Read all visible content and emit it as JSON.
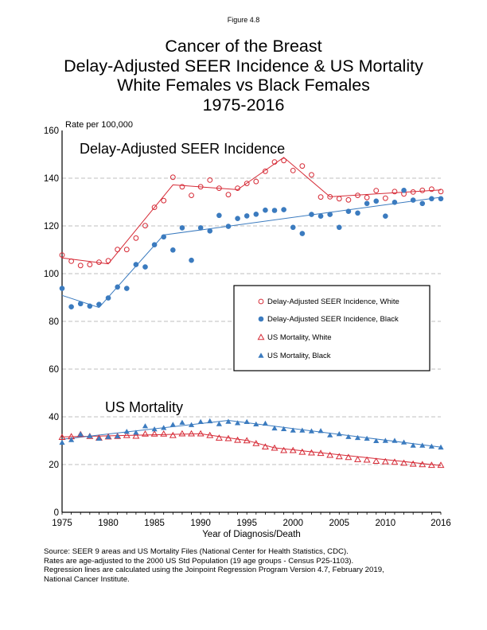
{
  "figure_label": "Figure 4.8",
  "title_lines": [
    "Cancer of the Breast",
    "Delay-Adjusted SEER Incidence & US Mortality",
    "White Females vs Black Females",
    "1975-2016"
  ],
  "footnote_lines": [
    "Source: SEER 9 areas and US Mortality Files (National Center for Health Statistics, CDC).",
    "Rates are age-adjusted to the 2000 US Std Population (19 age groups - Census P25-1103).",
    "Regression lines are calculated using the Joinpoint Regression Program Version 4.7, February 2019,",
    "National Cancer Institute."
  ],
  "colors": {
    "white": "#d62a36",
    "black": "#3b7bbf",
    "grid": "#aaaaaa"
  },
  "chart_data": {
    "type": "scatter",
    "title": "Cancer of the Breast - Delay-Adjusted SEER Incidence & US Mortality - White Females vs Black Females 1975-2016",
    "xlabel": "Year of Diagnosis/Death",
    "ylabel": "Rate per 100,000",
    "xlim": [
      1975,
      2016
    ],
    "ylim": [
      0,
      160
    ],
    "x_ticks": [
      1975,
      1980,
      1985,
      1990,
      1995,
      2000,
      2005,
      2010,
      2016
    ],
    "y_ticks": [
      0,
      20,
      40,
      60,
      80,
      100,
      120,
      140,
      160
    ],
    "grid": "horizontal dashed at 20, 40, 60, 80, 100, 120, 140",
    "legend_position": "center-right",
    "annotations": [
      "Delay-Adjusted SEER Incidence",
      "US Mortality"
    ],
    "years": [
      1975,
      1976,
      1977,
      1978,
      1979,
      1980,
      1981,
      1982,
      1983,
      1984,
      1985,
      1986,
      1987,
      1988,
      1989,
      1990,
      1991,
      1992,
      1993,
      1994,
      1995,
      1996,
      1997,
      1998,
      1999,
      2000,
      2001,
      2002,
      2003,
      2004,
      2005,
      2006,
      2007,
      2008,
      2009,
      2010,
      2011,
      2012,
      2013,
      2014,
      2015,
      2016
    ],
    "series": [
      {
        "name": "Delay-Adjusted SEER Incidence, White",
        "marker": "open-circle",
        "color": "#d62a36",
        "values": [
          107.8,
          105.2,
          103.4,
          103.8,
          104.8,
          105.4,
          110.1,
          110.1,
          114.9,
          120.1,
          127.8,
          130.6,
          140.4,
          136.4,
          132.8,
          136.4,
          139.2,
          135.8,
          133.1,
          135.8,
          137.8,
          138.6,
          142.9,
          146.8,
          147.4,
          143.2,
          145.1,
          141.4,
          132.1,
          132.2,
          131.4,
          130.9,
          132.8,
          131.9,
          134.8,
          131.6,
          134.4,
          133.4,
          134.2,
          134.9,
          135.4,
          134.4
        ],
        "trend": {
          "years": [
            1975,
            1980,
            1987,
            1994,
            1999,
            2004,
            2016
          ],
          "values": [
            106.6,
            104.1,
            137.2,
            135.2,
            148.7,
            132.2,
            135.1
          ]
        }
      },
      {
        "name": "Delay-Adjusted SEER Incidence, Black",
        "marker": "filled-circle",
        "color": "#3b7bbf",
        "values": [
          93.8,
          86.1,
          87.4,
          86.4,
          87.1,
          89.8,
          94.4,
          93.8,
          103.8,
          102.8,
          112.1,
          115.4,
          109.9,
          119.2,
          105.6,
          119.2,
          117.9,
          124.4,
          119.8,
          123.1,
          124.2,
          124.9,
          126.6,
          126.5,
          126.8,
          119.4,
          116.8,
          124.8,
          124.1,
          124.8,
          119.4,
          126.1,
          125.4,
          129.4,
          130.4,
          124.1,
          129.9,
          134.9,
          130.8,
          129.4,
          131.4,
          131.4
        ],
        "trend": {
          "years": [
            1975,
            1979,
            1986,
            2016
          ],
          "values": [
            90.9,
            85.8,
            116.2,
            132.0
          ]
        }
      },
      {
        "name": "US Mortality, White",
        "marker": "open-triangle",
        "color": "#d62a36",
        "values": [
          31.4,
          31.7,
          32.6,
          31.8,
          31.1,
          31.6,
          31.8,
          32.2,
          31.9,
          32.8,
          32.8,
          32.8,
          32.2,
          32.9,
          32.9,
          32.9,
          32.2,
          31.1,
          30.9,
          30.2,
          30.0,
          28.8,
          27.4,
          26.9,
          25.9,
          25.9,
          25.2,
          24.9,
          24.7,
          23.9,
          23.3,
          23.0,
          22.1,
          21.9,
          21.4,
          21.2,
          21.0,
          20.6,
          20.2,
          20.0,
          19.7,
          19.7
        ],
        "trend": {
          "years": [
            1975,
            1990,
            1995,
            1998,
            2016
          ],
          "values": [
            31.6,
            32.9,
            30.1,
            27.0,
            19.6
          ]
        }
      },
      {
        "name": "US Mortality, Black",
        "marker": "filled-triangle",
        "color": "#3b7bbf",
        "values": [
          29.2,
          30.3,
          32.7,
          32.0,
          30.9,
          31.6,
          31.9,
          33.8,
          33.4,
          36.1,
          34.8,
          35.4,
          36.7,
          37.6,
          36.6,
          37.9,
          38.2,
          37.0,
          38.0,
          37.4,
          37.9,
          36.9,
          37.2,
          35.2,
          34.9,
          34.3,
          34.3,
          34.0,
          34.1,
          32.3,
          32.8,
          31.6,
          31.2,
          30.9,
          29.9,
          30.0,
          30.0,
          29.3,
          28.0,
          28.0,
          27.6,
          27.2
        ],
        "trend": {
          "years": [
            1975,
            1993,
            2016
          ],
          "values": [
            30.6,
            38.5,
            27.3
          ]
        }
      }
    ]
  }
}
